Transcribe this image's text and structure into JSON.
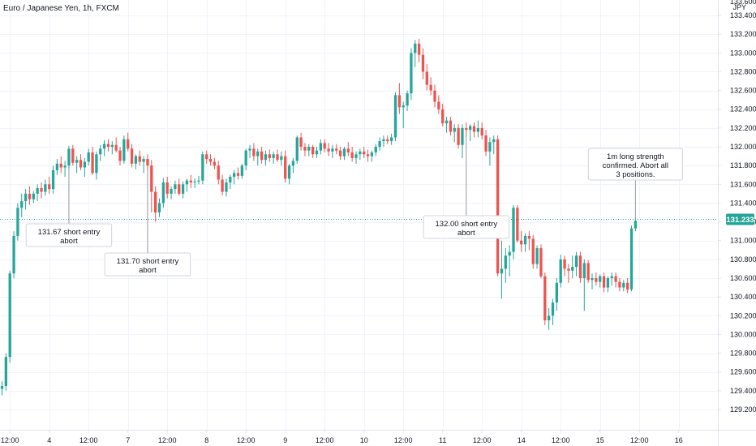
{
  "title": "Euro / Japanese Yen, 1h, FXCM",
  "currency": "JPY",
  "colors": {
    "up": "#26a69a",
    "down": "#ef5350",
    "grid": "#f0f3fa",
    "axis": "#e0e3eb",
    "price_line": "#26a69a"
  },
  "chart_data": {
    "type": "candlestick",
    "title": "Euro / Japanese Yen, 1h, FXCM",
    "ylim": [
      129.07,
      133.53
    ],
    "yticks": [
      129.2,
      129.4,
      129.6,
      129.8,
      130.0,
      130.2,
      130.4,
      130.6,
      130.8,
      131.0,
      131.2,
      131.4,
      131.6,
      131.8,
      132.0,
      132.2,
      132.4,
      132.6,
      132.8,
      133.0,
      133.2,
      133.4
    ],
    "ytick_labels": [
      "129.200",
      "129.400",
      "129.600",
      "129.800",
      "130.000",
      "130.200",
      "130.400",
      "130.600",
      "130.800",
      "131.000",
      "131.200",
      "131.400",
      "131.600",
      "131.800",
      "132.000",
      "132.200",
      "132.400",
      "132.600",
      "132.800",
      "133.000",
      "133.200",
      "133.400"
    ],
    "top_tick_label": "133.600",
    "xticks": [
      {
        "i": 2,
        "label": "12:00"
      },
      {
        "i": 12,
        "label": "4"
      },
      {
        "i": 22,
        "label": "12:00"
      },
      {
        "i": 32,
        "label": "7"
      },
      {
        "i": 42,
        "label": "12:00"
      },
      {
        "i": 52,
        "label": "8"
      },
      {
        "i": 62,
        "label": "12:00"
      },
      {
        "i": 72,
        "label": "9"
      },
      {
        "i": 82,
        "label": "12:00"
      },
      {
        "i": 92,
        "label": "10"
      },
      {
        "i": 102,
        "label": "12:00"
      },
      {
        "i": 112,
        "label": "11"
      },
      {
        "i": 122,
        "label": "12:00"
      },
      {
        "i": 132,
        "label": "14"
      },
      {
        "i": 142,
        "label": "12:00"
      },
      {
        "i": 152,
        "label": "15"
      },
      {
        "i": 162,
        "label": "12:00"
      },
      {
        "i": 172,
        "label": "16"
      }
    ],
    "last_price": 131.233,
    "last_price_label": "131.233",
    "candles": [
      [
        129.42,
        129.5,
        129.35,
        129.45
      ],
      [
        129.45,
        129.8,
        129.4,
        129.76
      ],
      [
        129.76,
        130.68,
        129.7,
        130.65
      ],
      [
        130.65,
        131.1,
        130.6,
        131.05
      ],
      [
        131.05,
        131.4,
        131.0,
        131.35
      ],
      [
        131.35,
        131.5,
        131.25,
        131.42
      ],
      [
        131.42,
        131.55,
        131.33,
        131.5
      ],
      [
        131.5,
        131.58,
        131.38,
        131.44
      ],
      [
        131.44,
        131.53,
        131.4,
        131.5
      ],
      [
        131.5,
        131.6,
        131.42,
        131.56
      ],
      [
        131.56,
        131.62,
        131.45,
        131.52
      ],
      [
        131.52,
        131.65,
        131.48,
        131.6
      ],
      [
        131.6,
        131.68,
        131.5,
        131.55
      ],
      [
        131.55,
        131.8,
        131.5,
        131.75
      ],
      [
        131.75,
        131.87,
        131.7,
        131.82
      ],
      [
        131.82,
        131.9,
        131.72,
        131.78
      ],
      [
        131.78,
        131.85,
        131.68,
        131.8
      ],
      [
        131.8,
        132.01,
        131.76,
        131.98
      ],
      [
        131.98,
        132.02,
        131.8,
        131.83
      ],
      [
        131.83,
        131.9,
        131.72,
        131.86
      ],
      [
        131.86,
        131.92,
        131.75,
        131.78
      ],
      [
        131.78,
        131.88,
        131.68,
        131.84
      ],
      [
        131.84,
        131.98,
        131.8,
        131.94
      ],
      [
        131.94,
        132.0,
        131.7,
        131.72
      ],
      [
        131.72,
        131.95,
        131.65,
        131.92
      ],
      [
        131.92,
        132.02,
        131.85,
        131.98
      ],
      [
        131.98,
        132.07,
        131.9,
        132.03
      ],
      [
        132.03,
        132.08,
        131.95,
        132.0
      ],
      [
        132.0,
        132.06,
        131.92,
        132.02
      ],
      [
        132.02,
        132.1,
        131.94,
        131.96
      ],
      [
        131.96,
        132.0,
        131.8,
        131.85
      ],
      [
        131.85,
        132.12,
        131.82,
        132.08
      ],
      [
        132.08,
        132.15,
        131.95,
        131.98
      ],
      [
        131.98,
        132.03,
        131.78,
        131.82
      ],
      [
        131.82,
        131.92,
        131.76,
        131.9
      ],
      [
        131.9,
        131.96,
        131.8,
        131.84
      ],
      [
        131.84,
        131.9,
        131.72,
        131.87
      ],
      [
        131.87,
        131.92,
        131.75,
        131.8
      ],
      [
        131.8,
        131.86,
        131.3,
        131.52
      ],
      [
        131.52,
        131.58,
        131.2,
        131.3
      ],
      [
        131.3,
        131.45,
        131.25,
        131.4
      ],
      [
        131.4,
        131.67,
        131.35,
        131.62
      ],
      [
        131.62,
        131.68,
        131.45,
        131.5
      ],
      [
        131.5,
        131.58,
        131.44,
        131.55
      ],
      [
        131.55,
        131.64,
        131.5,
        131.6
      ],
      [
        131.6,
        131.66,
        131.48,
        131.5
      ],
      [
        131.5,
        131.63,
        131.45,
        131.6
      ],
      [
        131.6,
        131.66,
        131.52,
        131.64
      ],
      [
        131.64,
        131.7,
        131.56,
        131.62
      ],
      [
        131.62,
        131.66,
        131.56,
        131.63
      ],
      [
        131.63,
        131.69,
        131.6,
        131.64
      ],
      [
        131.64,
        131.95,
        131.6,
        131.92
      ],
      [
        131.92,
        131.96,
        131.82,
        131.87
      ],
      [
        131.87,
        131.92,
        131.8,
        131.84
      ],
      [
        131.84,
        131.88,
        131.76,
        131.8
      ],
      [
        131.8,
        131.85,
        131.6,
        131.65
      ],
      [
        131.65,
        131.7,
        131.48,
        131.52
      ],
      [
        131.52,
        131.66,
        131.47,
        131.62
      ],
      [
        131.62,
        131.7,
        131.55,
        131.68
      ],
      [
        131.68,
        131.75,
        131.6,
        131.72
      ],
      [
        131.72,
        131.78,
        131.65,
        131.69
      ],
      [
        131.69,
        131.82,
        131.66,
        131.8
      ],
      [
        131.8,
        131.98,
        131.75,
        131.96
      ],
      [
        131.96,
        132.02,
        131.88,
        131.98
      ],
      [
        131.98,
        132.04,
        131.85,
        131.9
      ],
      [
        131.9,
        131.98,
        131.8,
        131.95
      ],
      [
        131.95,
        132.0,
        131.82,
        131.86
      ],
      [
        131.86,
        131.96,
        131.8,
        131.92
      ],
      [
        131.92,
        131.97,
        131.84,
        131.88
      ],
      [
        131.88,
        131.95,
        131.82,
        131.92
      ],
      [
        131.92,
        131.97,
        131.84,
        131.86
      ],
      [
        131.86,
        131.95,
        131.8,
        131.9
      ],
      [
        131.9,
        131.96,
        131.62,
        131.66
      ],
      [
        131.66,
        131.82,
        131.6,
        131.8
      ],
      [
        131.8,
        131.88,
        131.72,
        131.85
      ],
      [
        131.85,
        132.12,
        131.82,
        132.1
      ],
      [
        132.1,
        132.15,
        131.96,
        132.0
      ],
      [
        132.0,
        132.04,
        131.9,
        131.96
      ],
      [
        131.96,
        132.03,
        131.9,
        132.0
      ],
      [
        132.0,
        132.02,
        131.88,
        131.92
      ],
      [
        131.92,
        132.0,
        131.88,
        131.96
      ],
      [
        131.96,
        132.08,
        131.92,
        132.04
      ],
      [
        132.04,
        132.08,
        131.94,
        131.98
      ],
      [
        131.98,
        132.04,
        131.9,
        131.95
      ],
      [
        131.95,
        132.02,
        131.88,
        131.98
      ],
      [
        131.98,
        132.03,
        131.92,
        131.96
      ],
      [
        131.96,
        132.0,
        131.86,
        131.9
      ],
      [
        131.9,
        132.0,
        131.86,
        131.98
      ],
      [
        131.98,
        132.05,
        131.9,
        131.94
      ],
      [
        131.94,
        132.0,
        131.84,
        131.88
      ],
      [
        131.88,
        131.95,
        131.82,
        131.92
      ],
      [
        131.92,
        131.98,
        131.86,
        131.95
      ],
      [
        131.95,
        132.0,
        131.88,
        131.92
      ],
      [
        131.92,
        131.97,
        131.84,
        131.9
      ],
      [
        131.9,
        131.96,
        131.84,
        131.94
      ],
      [
        131.94,
        132.03,
        131.9,
        132.0
      ],
      [
        132.0,
        132.1,
        131.96,
        132.06
      ],
      [
        132.06,
        132.12,
        132.0,
        132.08
      ],
      [
        132.08,
        132.12,
        132.03,
        132.06
      ],
      [
        132.06,
        132.14,
        132.02,
        132.1
      ],
      [
        132.1,
        132.58,
        132.06,
        132.55
      ],
      [
        132.55,
        132.68,
        132.35,
        132.42
      ],
      [
        132.42,
        132.48,
        132.2,
        132.44
      ],
      [
        132.44,
        132.6,
        132.38,
        132.57
      ],
      [
        132.57,
        133.05,
        132.5,
        133.0
      ],
      [
        133.0,
        133.14,
        132.85,
        133.1
      ],
      [
        133.1,
        133.15,
        132.9,
        132.98
      ],
      [
        132.98,
        133.05,
        132.72,
        132.8
      ],
      [
        132.8,
        132.88,
        132.6,
        132.66
      ],
      [
        132.66,
        132.74,
        132.55,
        132.6
      ],
      [
        132.6,
        132.66,
        132.42,
        132.48
      ],
      [
        132.48,
        132.55,
        132.35,
        132.4
      ],
      [
        132.4,
        132.46,
        132.22,
        132.25
      ],
      [
        132.25,
        132.32,
        132.15,
        132.28
      ],
      [
        132.28,
        132.32,
        132.12,
        132.16
      ],
      [
        132.16,
        132.24,
        132.05,
        132.2
      ],
      [
        132.2,
        132.24,
        131.98,
        132.02
      ],
      [
        132.02,
        132.24,
        131.88,
        132.2
      ],
      [
        132.2,
        132.26,
        132.1,
        132.18
      ],
      [
        132.18,
        132.24,
        132.06,
        132.22
      ],
      [
        132.22,
        132.26,
        132.1,
        132.16
      ],
      [
        132.16,
        132.28,
        132.1,
        132.2
      ],
      [
        132.2,
        132.26,
        132.08,
        132.12
      ],
      [
        132.12,
        132.18,
        131.9,
        131.95
      ],
      [
        131.95,
        132.1,
        131.8,
        132.05
      ],
      [
        132.05,
        132.12,
        131.92,
        132.08
      ],
      [
        132.08,
        132.12,
        130.62,
        130.65
      ],
      [
        130.65,
        131.0,
        130.38,
        130.7
      ],
      [
        130.7,
        130.92,
        130.55,
        130.84
      ],
      [
        130.84,
        130.95,
        130.62,
        130.88
      ],
      [
        130.88,
        131.38,
        130.8,
        131.35
      ],
      [
        131.35,
        131.38,
        130.98,
        131.0
      ],
      [
        131.0,
        131.1,
        130.88,
        130.96
      ],
      [
        130.96,
        131.08,
        130.88,
        131.05
      ],
      [
        131.05,
        131.1,
        130.9,
        131.02
      ],
      [
        131.02,
        131.06,
        130.7,
        130.75
      ],
      [
        130.75,
        130.95,
        130.7,
        130.92
      ],
      [
        130.92,
        130.96,
        130.6,
        130.62
      ],
      [
        130.62,
        130.66,
        130.1,
        130.15
      ],
      [
        130.15,
        130.28,
        130.05,
        130.2
      ],
      [
        130.2,
        130.38,
        130.1,
        130.34
      ],
      [
        130.34,
        130.6,
        130.25,
        130.55
      ],
      [
        130.55,
        130.85,
        130.5,
        130.8
      ],
      [
        130.8,
        130.84,
        130.62,
        130.7
      ],
      [
        130.7,
        130.75,
        130.55,
        130.68
      ],
      [
        130.68,
        130.84,
        130.6,
        130.72
      ],
      [
        130.72,
        130.88,
        130.62,
        130.84
      ],
      [
        130.84,
        130.88,
        130.55,
        130.6
      ],
      [
        130.6,
        130.8,
        130.25,
        130.76
      ],
      [
        130.76,
        130.79,
        130.55,
        130.58
      ],
      [
        130.58,
        130.65,
        130.48,
        130.6
      ],
      [
        130.6,
        130.66,
        130.52,
        130.56
      ],
      [
        130.56,
        130.64,
        130.5,
        130.62
      ],
      [
        130.62,
        130.66,
        130.45,
        130.5
      ],
      [
        130.5,
        130.62,
        130.45,
        130.6
      ],
      [
        130.6,
        130.66,
        130.52,
        130.62
      ],
      [
        130.62,
        130.66,
        130.5,
        130.56
      ],
      [
        130.56,
        130.6,
        130.46,
        130.5
      ],
      [
        130.5,
        130.58,
        130.46,
        130.55
      ],
      [
        130.55,
        130.6,
        130.44,
        130.48
      ],
      [
        130.48,
        131.16,
        130.46,
        131.13
      ],
      [
        131.13,
        131.24,
        131.1,
        131.21
      ]
    ]
  },
  "annotations": [
    {
      "lines": [
        "131.67 short entry",
        "abort"
      ],
      "i": 17
    },
    {
      "lines": [
        "131.70 short entry",
        "abort"
      ],
      "i": 37
    },
    {
      "lines": [
        "132.00 short entry",
        "abort"
      ],
      "i": 118
    },
    {
      "lines": [
        "1m long strength",
        "confirmed. Abort all",
        "3 positions."
      ],
      "i": 161
    }
  ]
}
